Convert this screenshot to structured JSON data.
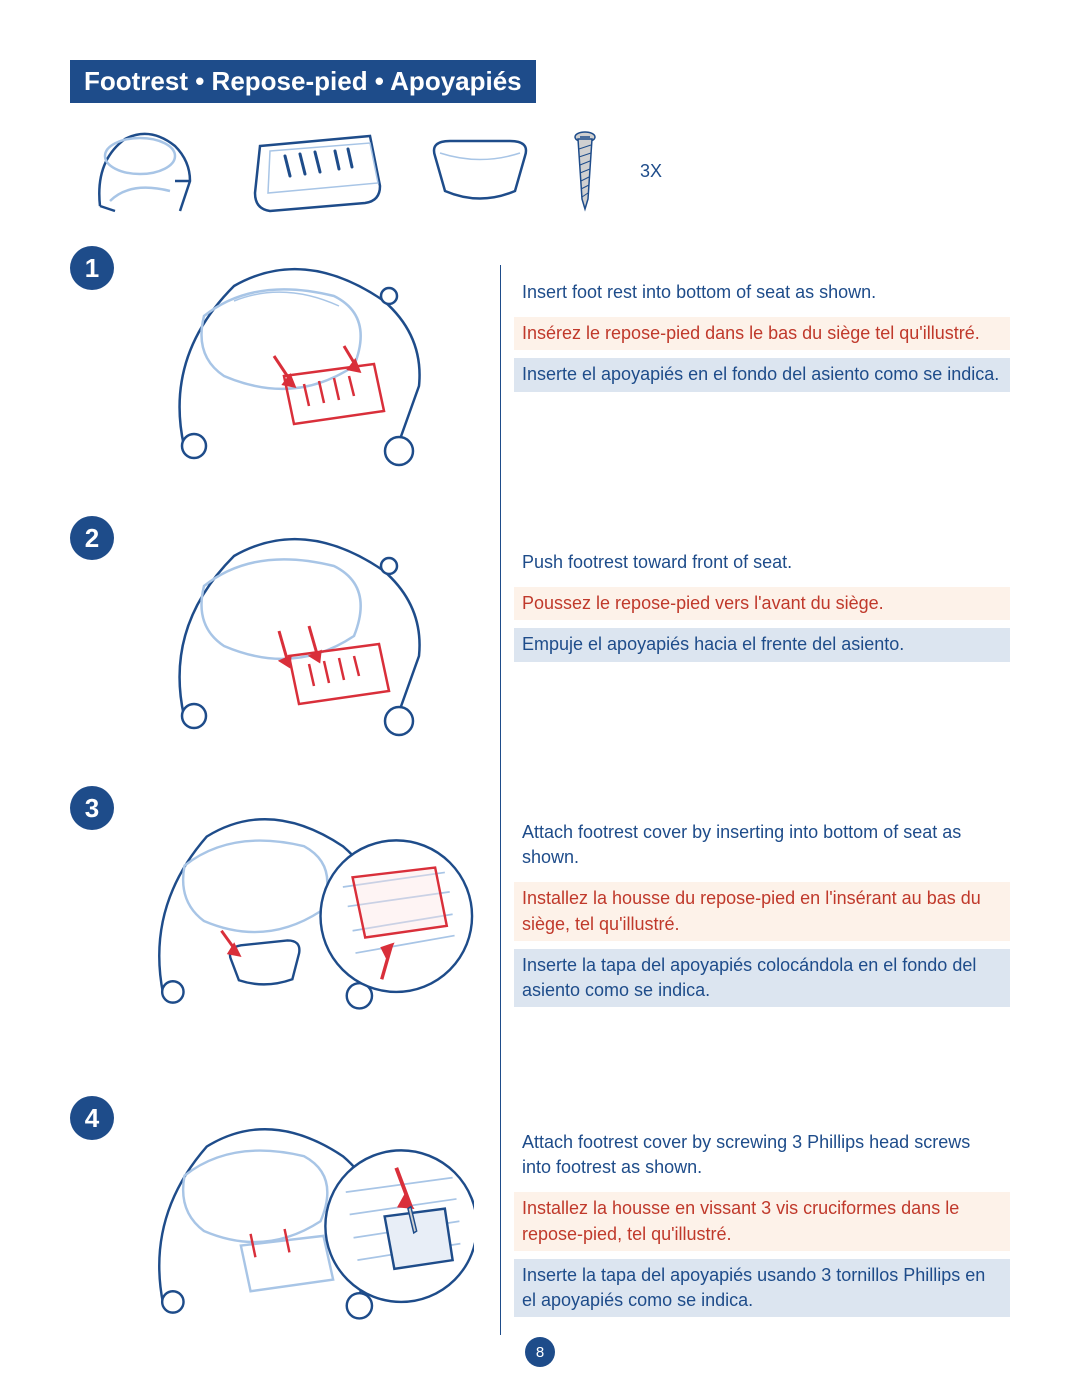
{
  "colors": {
    "primary": "#1e4c8a",
    "accent_red": "#c0392b",
    "fr_bg": "#fdf2e9",
    "es_bg": "#dce5f0",
    "highlight": "#d92f3a",
    "light_line": "#a8c5e6",
    "screw_fill": "#d0d0d0"
  },
  "title": "Footrest • Repose-pied • Apoyapiés",
  "parts_qty": "3X",
  "page_number": "8",
  "steps": [
    {
      "num": "1",
      "en": "Insert foot rest into bottom of seat as shown.",
      "fr": "Insérez le repose-pied dans le bas du siège tel qu'illustré.",
      "es": "Inserte el apoyapiés en el fondo del asiento como se indica."
    },
    {
      "num": "2",
      "en": "Push footrest toward front of seat.",
      "fr": "Poussez le repose-pied vers l'avant du siège.",
      "es": "Empuje el apoyapiés hacia el frente del asiento."
    },
    {
      "num": "3",
      "en": "Attach footrest cover by inserting into bottom of seat as shown.",
      "fr": "Installez la housse du repose-pied en l'insérant au bas du siège, tel qu'illustré.",
      "es": "Inserte la tapa del apoyapiés colocándola en el fondo del asiento como se indica."
    },
    {
      "num": "4",
      "en": "Attach footrest cover by screwing 3 Phillips head screws into footrest as shown.",
      "fr": "Installez la housse en vissant 3 vis cruciformes dans le repose-pied, tel qu'illustré.",
      "es": "Inserte la tapa del apoyapiés usando 3 tornillos Phillips en el apoyapiés como se indica."
    }
  ],
  "footer_dots": {
    "count_each_side": 12,
    "left_color": "#7ea6d4",
    "right_color": "#7ea6d4",
    "right_alt_color": "#c0392b"
  }
}
